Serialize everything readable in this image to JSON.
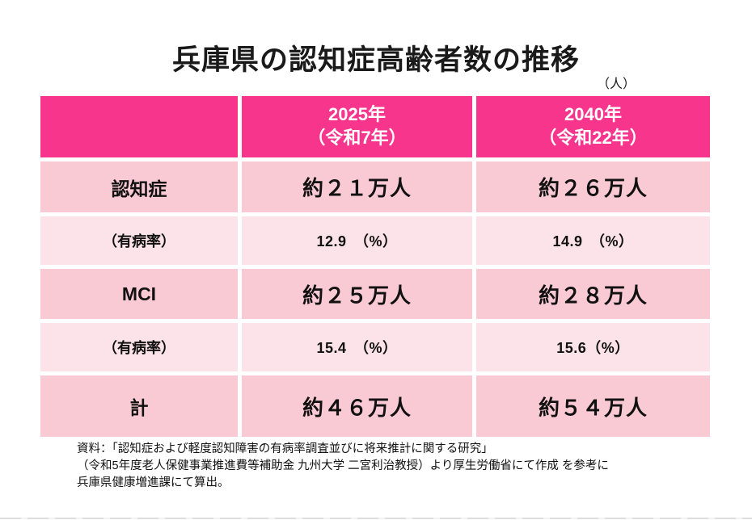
{
  "page": {
    "title": "兵庫県の認知症高齢者数の推移",
    "unit_label": "（人）"
  },
  "table": {
    "header": {
      "corner": "",
      "col2025_line1": "2025年",
      "col2025_line2": "（令和7年）",
      "col2040_line1": "2040年",
      "col2040_line2": "（令和22年）"
    },
    "rows": [
      {
        "label": "認知症",
        "v2025": "約２１万人",
        "v2040": "約２６万人"
      },
      {
        "label": "（有病率）",
        "v2025": "12.9　（%）",
        "v2040": "14.9　（%）"
      },
      {
        "label": "MCI",
        "v2025": "約２５万人",
        "v2040": "約２８万人"
      },
      {
        "label": "（有病率）",
        "v2025": "15.4　（%）",
        "v2040": "15.6（%）"
      },
      {
        "label": "計",
        "v2025": "約４６万人",
        "v2040": "約５４万人"
      }
    ]
  },
  "footer": {
    "line1": "資料：「認知症および軽度認知障害の有病率調査並びに将来推計に関する研究」",
    "line2": "（令和5年度老人保健事業推進費等補助金 九州大学 二宮利治教授）より厚生労働省にて作成 を参考に",
    "line3": "兵庫県健康増進課にて算出。"
  },
  "colors": {
    "header_bg": "#F8358C",
    "row_dark_bg": "#F9C9D4",
    "row_light_bg": "#FCE3E9",
    "header_text": "#FFFFFF",
    "body_text": "#111111"
  },
  "chart_data": {
    "type": "table",
    "title": "兵庫県の認知症高齢者数の推移",
    "unit": "人",
    "columns": [
      "",
      "2025年（令和7年）",
      "2040年（令和22年）"
    ],
    "rows": [
      [
        "認知症",
        "約21万人",
        "約26万人"
      ],
      [
        "（有病率）",
        "12.9（%）",
        "14.9（%）"
      ],
      [
        "MCI",
        "約25万人",
        "約28万人"
      ],
      [
        "（有病率）",
        "15.4（%）",
        "15.6（%）"
      ],
      [
        "計",
        "約46万人",
        "約54万人"
      ]
    ],
    "numeric": {
      "dementia_people": {
        "2025": 210000,
        "2040": 260000
      },
      "dementia_prevalence_pct": {
        "2025": 12.9,
        "2040": 14.9
      },
      "mci_people": {
        "2025": 250000,
        "2040": 280000
      },
      "mci_prevalence_pct": {
        "2025": 15.4,
        "2040": 15.6
      },
      "total_people": {
        "2025": 460000,
        "2040": 540000
      }
    },
    "source": "資料：「認知症および軽度認知障害の有病率調査並びに将来推計に関する研究」（令和5年度老人保健事業推進費等補助金 九州大学 二宮利治教授）より厚生労働省にて作成 を参考に兵庫県健康増進課にて算出。"
  }
}
